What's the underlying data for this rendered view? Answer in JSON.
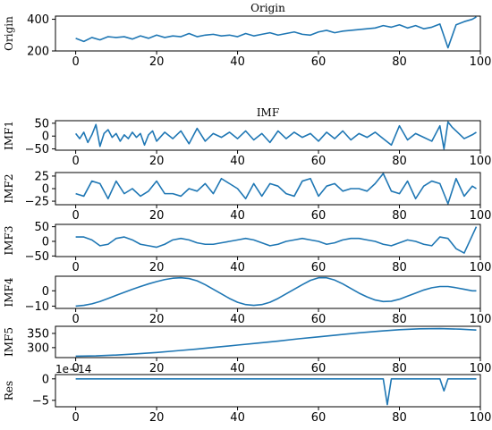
{
  "chart_data": [
    {
      "type": "line",
      "id": "origin",
      "title": "Origin",
      "ylabel": "Origin",
      "ylim": [
        200,
        420
      ],
      "xlim": [
        -5,
        100
      ],
      "yticks": [
        200,
        400
      ],
      "xticks": [
        0,
        20,
        40,
        60,
        80,
        100
      ],
      "color": "#1f77b4",
      "x": [
        0,
        2,
        4,
        6,
        8,
        10,
        12,
        14,
        16,
        18,
        20,
        22,
        24,
        26,
        28,
        30,
        32,
        34,
        36,
        38,
        40,
        42,
        44,
        46,
        48,
        50,
        52,
        54,
        56,
        58,
        60,
        62,
        64,
        66,
        68,
        70,
        72,
        74,
        76,
        78,
        80,
        82,
        84,
        86,
        88,
        90,
        92,
        94,
        96,
        98,
        99
      ],
      "y": [
        280,
        260,
        285,
        270,
        290,
        285,
        290,
        275,
        295,
        280,
        300,
        285,
        295,
        290,
        310,
        290,
        300,
        305,
        295,
        300,
        290,
        310,
        295,
        305,
        315,
        300,
        310,
        320,
        305,
        300,
        320,
        330,
        315,
        325,
        330,
        335,
        340,
        345,
        360,
        350,
        365,
        345,
        360,
        340,
        350,
        370,
        220,
        365,
        385,
        400,
        415
      ]
    },
    {
      "type": "line",
      "id": "imf1",
      "title": "IMF",
      "ylabel": "IMF1",
      "ylim": [
        -55,
        60
      ],
      "xlim": [
        -5,
        100
      ],
      "yticks": [
        -50,
        0,
        50
      ],
      "xticks": [
        0,
        20,
        40,
        60,
        80,
        100
      ],
      "color": "#1f77b4",
      "x": [
        0,
        1,
        2,
        3,
        4,
        5,
        6,
        7,
        8,
        9,
        10,
        11,
        12,
        13,
        14,
        15,
        16,
        17,
        18,
        19,
        20,
        22,
        24,
        26,
        28,
        30,
        32,
        34,
        36,
        38,
        40,
        42,
        44,
        46,
        48,
        50,
        52,
        54,
        56,
        58,
        60,
        62,
        64,
        66,
        68,
        70,
        72,
        74,
        76,
        78,
        80,
        82,
        84,
        86,
        88,
        90,
        91,
        92,
        93,
        94,
        96,
        98,
        99
      ],
      "y": [
        10,
        -10,
        15,
        -25,
        5,
        45,
        -40,
        10,
        25,
        -5,
        10,
        -20,
        5,
        -10,
        15,
        -5,
        10,
        -35,
        5,
        20,
        -20,
        15,
        -10,
        20,
        -30,
        30,
        -20,
        10,
        -5,
        15,
        -10,
        20,
        -15,
        10,
        -25,
        20,
        -10,
        15,
        -5,
        10,
        -20,
        15,
        -10,
        20,
        -15,
        10,
        -5,
        15,
        -10,
        -35,
        40,
        -15,
        10,
        -5,
        -20,
        40,
        -50,
        55,
        35,
        20,
        -10,
        5,
        15
      ]
    },
    {
      "type": "line",
      "id": "imf2",
      "title": "",
      "ylabel": "IMF2",
      "ylim": [
        -32,
        32
      ],
      "xlim": [
        -5,
        100
      ],
      "yticks": [
        -25,
        0,
        25
      ],
      "xticks": [
        0,
        20,
        40,
        60,
        80,
        100
      ],
      "color": "#1f77b4",
      "x": [
        0,
        2,
        4,
        6,
        8,
        10,
        12,
        14,
        16,
        18,
        20,
        22,
        24,
        26,
        28,
        30,
        32,
        34,
        36,
        38,
        40,
        42,
        44,
        46,
        48,
        50,
        52,
        54,
        56,
        58,
        60,
        62,
        64,
        66,
        68,
        70,
        72,
        74,
        76,
        78,
        80,
        82,
        84,
        86,
        88,
        90,
        92,
        94,
        96,
        98,
        99
      ],
      "y": [
        -10,
        -15,
        15,
        10,
        -20,
        15,
        -10,
        0,
        -15,
        -5,
        15,
        -10,
        -10,
        -15,
        0,
        -5,
        10,
        -10,
        20,
        10,
        0,
        -20,
        10,
        -15,
        10,
        5,
        -10,
        -15,
        15,
        20,
        -15,
        5,
        10,
        -5,
        0,
        0,
        -5,
        10,
        30,
        -5,
        -10,
        15,
        -20,
        5,
        15,
        10,
        -30,
        20,
        -15,
        5,
        0
      ]
    },
    {
      "type": "line",
      "id": "imf3",
      "title": "",
      "ylabel": "IMF3",
      "ylim": [
        -52,
        58
      ],
      "xlim": [
        -5,
        100
      ],
      "yticks": [
        -50,
        0,
        50
      ],
      "xticks": [
        0,
        20,
        40,
        60,
        80,
        100
      ],
      "color": "#1f77b4",
      "x": [
        0,
        2,
        4,
        6,
        8,
        10,
        12,
        14,
        16,
        18,
        20,
        22,
        24,
        26,
        28,
        30,
        32,
        34,
        36,
        38,
        40,
        42,
        44,
        46,
        48,
        50,
        52,
        54,
        56,
        58,
        60,
        62,
        64,
        66,
        68,
        70,
        72,
        74,
        76,
        78,
        80,
        82,
        84,
        86,
        88,
        90,
        92,
        94,
        96,
        98,
        99
      ],
      "y": [
        15,
        15,
        5,
        -15,
        -10,
        10,
        15,
        5,
        -10,
        -15,
        -20,
        -10,
        5,
        10,
        5,
        -5,
        -10,
        -10,
        -5,
        0,
        5,
        10,
        5,
        -5,
        -15,
        -10,
        0,
        5,
        10,
        5,
        0,
        -10,
        -5,
        5,
        10,
        10,
        5,
        0,
        -10,
        -15,
        -5,
        5,
        0,
        -10,
        -15,
        15,
        10,
        -25,
        -40,
        20,
        50
      ]
    },
    {
      "type": "line",
      "id": "imf4",
      "title": "",
      "ylabel": "IMF4",
      "ylim": [
        -11.5,
        9.5
      ],
      "xlim": [
        -5,
        100
      ],
      "yticks": [
        -10,
        0
      ],
      "xticks": [
        0,
        20,
        40,
        60,
        80,
        100
      ],
      "color": "#1f77b4",
      "x": [
        0,
        2,
        4,
        6,
        8,
        10,
        12,
        14,
        16,
        18,
        20,
        22,
        24,
        26,
        28,
        30,
        32,
        34,
        36,
        38,
        40,
        42,
        44,
        46,
        48,
        50,
        52,
        54,
        56,
        58,
        60,
        62,
        64,
        66,
        68,
        70,
        72,
        74,
        76,
        78,
        80,
        82,
        84,
        86,
        88,
        90,
        92,
        94,
        96,
        98,
        99
      ],
      "y": [
        -10.0,
        -9.5,
        -8.5,
        -7.0,
        -5.0,
        -3.0,
        -1.0,
        1.0,
        2.8,
        4.5,
        6.0,
        7.3,
        8.2,
        8.5,
        8.0,
        6.5,
        4.0,
        1.0,
        -2.0,
        -5.0,
        -7.5,
        -9.0,
        -9.5,
        -9.0,
        -7.5,
        -5.0,
        -2.0,
        1.0,
        4.0,
        6.8,
        8.5,
        8.5,
        7.0,
        4.5,
        1.5,
        -1.5,
        -4.0,
        -6.0,
        -7.0,
        -6.8,
        -5.5,
        -3.5,
        -1.5,
        0.5,
        2.0,
        2.8,
        2.8,
        2.0,
        1.0,
        0.0,
        0.0
      ]
    },
    {
      "type": "line",
      "id": "imf5",
      "title": "",
      "ylabel": "IMF5",
      "ylim": [
        265,
        375
      ],
      "xlim": [
        -5,
        100
      ],
      "yticks": [
        300,
        350
      ],
      "xticks": [
        0,
        20,
        40,
        60,
        80,
        100
      ],
      "color": "#1f77b4",
      "x": [
        0,
        5,
        10,
        15,
        20,
        25,
        30,
        35,
        40,
        45,
        50,
        55,
        60,
        65,
        70,
        75,
        80,
        85,
        90,
        95,
        99
      ],
      "y": [
        270,
        271,
        274,
        278,
        283,
        289,
        295,
        302,
        309,
        316,
        323,
        331,
        338,
        345,
        352,
        358,
        363,
        366,
        367,
        365,
        362
      ]
    },
    {
      "type": "line",
      "id": "res",
      "title": "",
      "ylabel": "Res",
      "offset_text": "1e−14",
      "ylim": [
        -6.5,
        1.0
      ],
      "xlim": [
        -5,
        100
      ],
      "yticks": [
        -5,
        0
      ],
      "xticks": [
        0,
        20,
        40,
        60,
        80,
        100
      ],
      "color": "#1f77b4",
      "x": [
        0,
        76,
        77,
        78,
        90,
        91,
        92,
        99
      ],
      "y": [
        0,
        0,
        -6,
        0,
        0,
        -2.8,
        0,
        0
      ]
    }
  ]
}
